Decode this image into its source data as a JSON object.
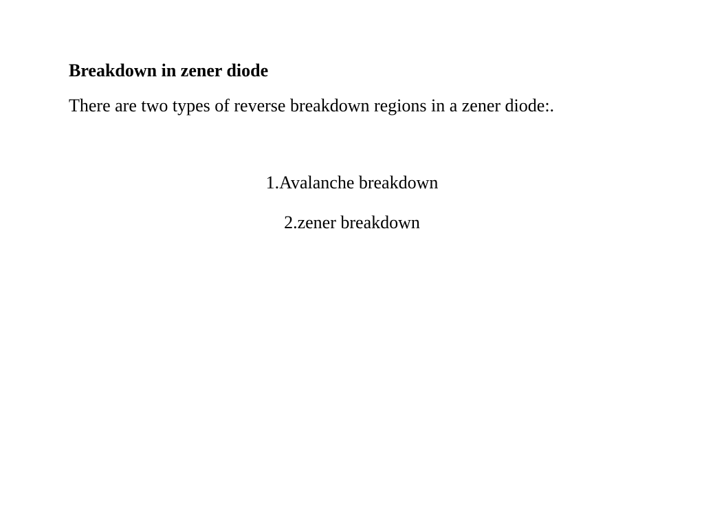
{
  "document": {
    "title": "Breakdown in zener diode",
    "intro": "There are two types of reverse breakdown regions in a zener diode:.",
    "items": [
      "1.Avalanche breakdown",
      "2.zener breakdown"
    ]
  },
  "styling": {
    "background_color": "#ffffff",
    "text_color": "#000000",
    "font_family": "Times New Roman",
    "title_fontsize": 26,
    "title_fontweight": "bold",
    "body_fontsize": 26,
    "intro_align": "justify",
    "list_align": "center"
  }
}
